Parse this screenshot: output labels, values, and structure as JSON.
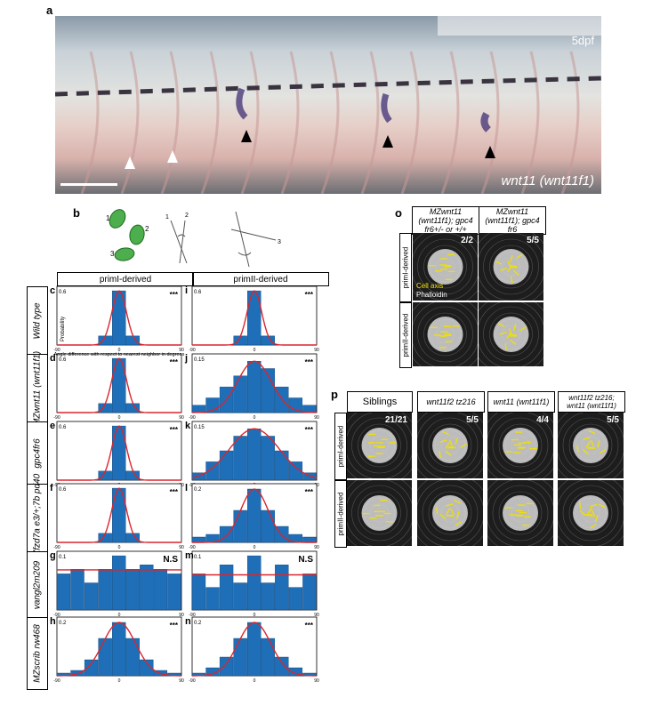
{
  "panel_labels": {
    "a": "a",
    "b": "b",
    "c": "c",
    "d": "d",
    "e": "e",
    "f": "f",
    "g": "g",
    "h": "h",
    "i": "i",
    "j": "j",
    "k": "k",
    "l": "l",
    "m": "m",
    "n": "n",
    "o": "o",
    "p": "p"
  },
  "panel_a": {
    "stage": "5dpf",
    "gene": "wnt11 (wnt11f1)"
  },
  "panel_b": {
    "cell_numbers": [
      "1",
      "2",
      "3"
    ],
    "angle_numbers": [
      "1",
      "2",
      "3"
    ]
  },
  "column_headers": [
    "primI-derived",
    "primII-derived"
  ],
  "row_labels": [
    "Wild type",
    "MZwnt11 (wnt11f1)",
    "gpc4fr6",
    "MZfzd7a e3/+;7b pd40",
    "vangl2m209",
    "MZscrib rw468"
  ],
  "axis": {
    "ylabel": "Probability",
    "xlabel": "Angle difference with respect to nearest neighbor in degrees",
    "ticks": [
      "-90",
      "0",
      "90"
    ]
  },
  "sig": [
    "***",
    "***",
    "***",
    "***",
    "N.S",
    "***"
  ],
  "chart_data": [
    {
      "panel": "c",
      "type": "bar",
      "x": [
        -80,
        -60,
        -40,
        -20,
        0,
        20,
        40,
        60,
        80
      ],
      "values": [
        0,
        0,
        0,
        0.1,
        0.6,
        0.1,
        0,
        0,
        0
      ],
      "yticks": [
        "0.6"
      ],
      "ylim": [
        0,
        0.65
      ],
      "significance": "***"
    },
    {
      "panel": "d",
      "type": "bar",
      "x": [
        -80,
        -60,
        -40,
        -20,
        0,
        20,
        40,
        60,
        80
      ],
      "values": [
        0,
        0,
        0,
        0.1,
        0.6,
        0.1,
        0,
        0,
        0
      ],
      "yticks": [
        "0.6"
      ],
      "ylim": [
        0,
        0.65
      ],
      "significance": "***"
    },
    {
      "panel": "e",
      "type": "bar",
      "x": [
        -80,
        -60,
        -40,
        -20,
        0,
        20,
        40,
        60,
        80
      ],
      "values": [
        0,
        0,
        0,
        0.1,
        0.6,
        0.1,
        0,
        0,
        0
      ],
      "yticks": [
        "0.6"
      ],
      "ylim": [
        0,
        0.65
      ],
      "significance": "***"
    },
    {
      "panel": "f",
      "type": "bar",
      "x": [
        -80,
        -60,
        -40,
        -20,
        0,
        20,
        40,
        60,
        80
      ],
      "values": [
        0,
        0,
        0,
        0.1,
        0.6,
        0.1,
        0,
        0,
        0
      ],
      "yticks": [
        "0.6"
      ],
      "ylim": [
        0,
        0.65
      ],
      "significance": "***"
    },
    {
      "panel": "g",
      "type": "bar",
      "x": [
        -80,
        -60,
        -40,
        -20,
        0,
        20,
        40,
        60,
        80
      ],
      "values": [
        0.08,
        0.09,
        0.06,
        0.09,
        0.12,
        0.09,
        0.1,
        0.09,
        0.08
      ],
      "yticks": [
        "0.1"
      ],
      "ylim": [
        0,
        0.13
      ],
      "significance": "N.S"
    },
    {
      "panel": "h",
      "type": "bar",
      "x": [
        -80,
        -60,
        -40,
        -20,
        0,
        20,
        40,
        60,
        80
      ],
      "values": [
        0.01,
        0.02,
        0.06,
        0.14,
        0.2,
        0.14,
        0.06,
        0.02,
        0.01
      ],
      "yticks": [
        "0.2"
      ],
      "ylim": [
        0,
        0.22
      ],
      "significance": "***"
    },
    {
      "panel": "i",
      "type": "bar",
      "x": [
        -80,
        -60,
        -40,
        -20,
        0,
        20,
        40,
        60,
        80
      ],
      "values": [
        0,
        0,
        0,
        0.1,
        0.6,
        0.1,
        0,
        0,
        0
      ],
      "yticks": [
        "0.6"
      ],
      "ylim": [
        0,
        0.65
      ],
      "significance": "***"
    },
    {
      "panel": "j",
      "type": "bar",
      "x": [
        -80,
        -60,
        -40,
        -20,
        0,
        20,
        40,
        60,
        80
      ],
      "values": [
        0.02,
        0.04,
        0.07,
        0.1,
        0.14,
        0.12,
        0.07,
        0.04,
        0.02
      ],
      "yticks": [
        "0.15"
      ],
      "ylim": [
        0,
        0.16
      ],
      "significance": "***"
    },
    {
      "panel": "k",
      "type": "bar",
      "x": [
        -80,
        -60,
        -40,
        -20,
        0,
        20,
        40,
        60,
        80
      ],
      "values": [
        0.02,
        0.05,
        0.08,
        0.12,
        0.14,
        0.12,
        0.08,
        0.05,
        0.02
      ],
      "yticks": [
        "0.15"
      ],
      "ylim": [
        0,
        0.16
      ],
      "significance": "***"
    },
    {
      "panel": "l",
      "type": "bar",
      "x": [
        -80,
        -60,
        -40,
        -20,
        0,
        20,
        40,
        60,
        80
      ],
      "values": [
        0.02,
        0.03,
        0.06,
        0.12,
        0.2,
        0.12,
        0.06,
        0.03,
        0.02
      ],
      "yticks": [
        "0.2"
      ],
      "ylim": [
        0,
        0.22
      ],
      "significance": "***"
    },
    {
      "panel": "m",
      "type": "bar",
      "x": [
        -80,
        -60,
        -40,
        -20,
        0,
        20,
        40,
        60,
        80
      ],
      "values": [
        0.08,
        0.05,
        0.1,
        0.06,
        0.12,
        0.06,
        0.1,
        0.05,
        0.08
      ],
      "yticks": [
        "0.1"
      ],
      "ylim": [
        0,
        0.13
      ],
      "significance": "N.S"
    },
    {
      "panel": "n",
      "type": "bar",
      "x": [
        -80,
        -60,
        -40,
        -20,
        0,
        20,
        40,
        60,
        80
      ],
      "values": [
        0.01,
        0.03,
        0.07,
        0.14,
        0.2,
        0.14,
        0.07,
        0.03,
        0.01
      ],
      "yticks": [
        "0.2"
      ],
      "ylim": [
        0,
        0.22
      ],
      "significance": "***"
    }
  ],
  "panel_o": {
    "headers": [
      "MZwnt11 (wnt11f1); gpc4 fr6+/- or +/+",
      "MZwnt11 (wnt11f1); gpc4 fr6"
    ],
    "rows": [
      "primI-derived",
      "primII-derived"
    ],
    "counts": [
      "2/2",
      "5/5"
    ],
    "legend": [
      "Cell axis",
      "Phalloidin"
    ]
  },
  "panel_p": {
    "headers": [
      "Siblings",
      "wnt11f2 tz216",
      "wnt11 (wnt11f1)",
      "wnt11f2 tz216; wnt11 (wnt11f1)"
    ],
    "rows": [
      "primI-derived",
      "primII-derived"
    ],
    "counts": [
      "21/21",
      "5/5",
      "4/4",
      "5/5"
    ]
  },
  "colors": {
    "bar": "#1f6fb8",
    "fit": "#d8262e",
    "cell_axis": "#f0e000",
    "stain": "#4a3a7a"
  }
}
